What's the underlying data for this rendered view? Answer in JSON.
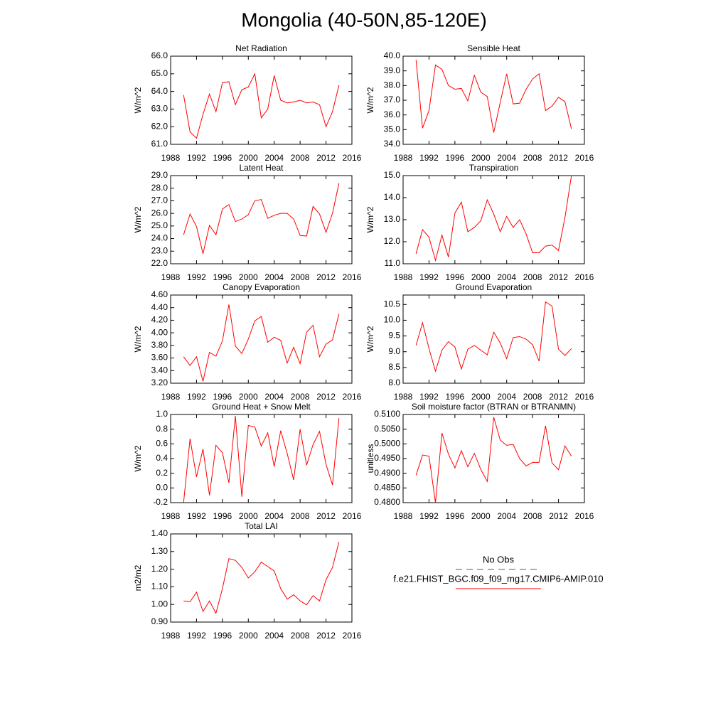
{
  "title": "Mongolia (40-50N,85-120E)",
  "legend": [
    {
      "name": "No Obs",
      "color": "#5050a0",
      "dashed": true
    },
    {
      "name": "f.e21.FHIST_BGC.f09_f09_mg17.CMIP6-AMIP.010",
      "color": "#ff0000",
      "dashed": false
    }
  ],
  "chart_data": [
    {
      "type": "line",
      "title": "Net Radiation",
      "y_label": "W/m^2",
      "color": "#ff0000",
      "x": [
        1990,
        1991,
        1992,
        1993,
        1994,
        1995,
        1996,
        1997,
        1998,
        1999,
        2000,
        2001,
        2002,
        2003,
        2004,
        2005,
        2006,
        2007,
        2008,
        2009,
        2010,
        2011,
        2012,
        2013,
        2014
      ],
      "values": [
        63.8,
        61.7,
        61.35,
        62.7,
        63.85,
        62.85,
        64.5,
        64.55,
        63.25,
        64.1,
        64.25,
        65.0,
        62.5,
        63.0,
        64.9,
        63.5,
        63.35,
        63.4,
        63.5,
        63.35,
        63.4,
        63.25,
        62.0,
        62.85,
        64.35
      ],
      "xlim": [
        1988,
        2016
      ],
      "xticks": [
        1988,
        1992,
        1996,
        2000,
        2004,
        2008,
        2012,
        2016
      ],
      "ylim": [
        61,
        66
      ],
      "yticks": [
        {
          "value": 61,
          "label": "61.0"
        },
        {
          "value": 62,
          "label": "62.0"
        },
        {
          "value": 63,
          "label": "63.0"
        },
        {
          "value": 64,
          "label": "64.0"
        },
        {
          "value": 65,
          "label": "65.0"
        },
        {
          "value": 66,
          "label": "66.0"
        }
      ]
    },
    {
      "type": "line",
      "title": "Sensible Heat",
      "y_label": "W/m^2",
      "color": "#ff0000",
      "x": [
        1990,
        1991,
        1992,
        1993,
        1994,
        1995,
        1996,
        1997,
        1998,
        1999,
        2000,
        2001,
        2002,
        2003,
        2004,
        2005,
        2006,
        2007,
        2008,
        2009,
        2010,
        2011,
        2012,
        2013,
        2014
      ],
      "values": [
        39.75,
        35.1,
        36.3,
        39.4,
        39.1,
        38.0,
        37.75,
        37.8,
        36.95,
        38.7,
        37.55,
        37.25,
        34.8,
        36.85,
        38.8,
        36.75,
        36.8,
        37.75,
        38.45,
        38.8,
        36.3,
        36.6,
        37.2,
        36.9,
        35.05
      ],
      "xlim": [
        1988,
        2016
      ],
      "xticks": [
        1988,
        1992,
        1996,
        2000,
        2004,
        2008,
        2012,
        2016
      ],
      "ylim": [
        34,
        40
      ],
      "yticks": [
        {
          "value": 34,
          "label": "34.0"
        },
        {
          "value": 35,
          "label": "35.0"
        },
        {
          "value": 36,
          "label": "36.0"
        },
        {
          "value": 37,
          "label": "37.0"
        },
        {
          "value": 38,
          "label": "38.0"
        },
        {
          "value": 39,
          "label": "39.0"
        },
        {
          "value": 40,
          "label": "40.0"
        }
      ]
    },
    {
      "type": "line",
      "title": "Latent Heat",
      "y_label": "W/m^2",
      "color": "#ff0000",
      "x": [
        1990,
        1991,
        1992,
        1993,
        1994,
        1995,
        1996,
        1997,
        1998,
        1999,
        2000,
        2001,
        2002,
        2003,
        2004,
        2005,
        2006,
        2007,
        2008,
        2009,
        2010,
        2011,
        2012,
        2013,
        2014
      ],
      "values": [
        24.3,
        25.95,
        24.95,
        22.8,
        25.05,
        24.3,
        26.35,
        26.7,
        25.35,
        25.55,
        25.9,
        27.0,
        27.1,
        25.6,
        25.85,
        26.0,
        26.0,
        25.55,
        24.25,
        24.2,
        26.55,
        25.95,
        24.5,
        26.0,
        28.4
      ],
      "xlim": [
        1988,
        2016
      ],
      "xticks": [
        1988,
        1992,
        1996,
        2000,
        2004,
        2008,
        2012,
        2016
      ],
      "ylim": [
        22,
        29
      ],
      "yticks": [
        {
          "value": 22,
          "label": "22.0"
        },
        {
          "value": 23,
          "label": "23.0"
        },
        {
          "value": 24,
          "label": "24.0"
        },
        {
          "value": 25,
          "label": "25.0"
        },
        {
          "value": 26,
          "label": "26.0"
        },
        {
          "value": 27,
          "label": "27.0"
        },
        {
          "value": 28,
          "label": "28.0"
        },
        {
          "value": 29,
          "label": "29.0"
        }
      ]
    },
    {
      "type": "line",
      "title": "Transpiration",
      "y_label": "W/m^2",
      "color": "#ff0000",
      "x": [
        1990,
        1991,
        1992,
        1993,
        1994,
        1995,
        1996,
        1997,
        1998,
        1999,
        2000,
        2001,
        2002,
        2003,
        2004,
        2005,
        2006,
        2007,
        2008,
        2009,
        2010,
        2011,
        2012,
        2013,
        2014
      ],
      "values": [
        11.45,
        12.55,
        12.2,
        11.15,
        12.3,
        11.3,
        13.3,
        13.8,
        12.45,
        12.65,
        12.95,
        13.9,
        13.25,
        12.45,
        13.15,
        12.65,
        13.0,
        12.35,
        11.5,
        11.5,
        11.8,
        11.85,
        11.6,
        13.1,
        15.0
      ],
      "xlim": [
        1988,
        2016
      ],
      "xticks": [
        1988,
        1992,
        1996,
        2000,
        2004,
        2008,
        2012,
        2016
      ],
      "ylim": [
        11,
        15
      ],
      "yticks": [
        {
          "value": 11,
          "label": "11.0"
        },
        {
          "value": 12,
          "label": "12.0"
        },
        {
          "value": 13,
          "label": "13.0"
        },
        {
          "value": 14,
          "label": "14.0"
        },
        {
          "value": 15,
          "label": "15.0"
        }
      ]
    },
    {
      "type": "line",
      "title": "Canopy Evaporation",
      "y_label": "W/m^2",
      "color": "#ff0000",
      "x": [
        1990,
        1991,
        1992,
        1993,
        1994,
        1995,
        1996,
        1997,
        1998,
        1999,
        2000,
        2001,
        2002,
        2003,
        2004,
        2005,
        2006,
        2007,
        2008,
        2009,
        2010,
        2011,
        2012,
        2013,
        2014
      ],
      "values": [
        3.62,
        3.48,
        3.62,
        3.23,
        3.69,
        3.63,
        3.87,
        4.45,
        3.79,
        3.67,
        3.9,
        4.19,
        4.26,
        3.85,
        3.93,
        3.88,
        3.52,
        3.77,
        3.51,
        4.01,
        4.12,
        3.62,
        3.82,
        3.89,
        4.3
      ],
      "xlim": [
        1988,
        2016
      ],
      "xticks": [
        1988,
        1992,
        1996,
        2000,
        2004,
        2008,
        2012,
        2016
      ],
      "ylim": [
        3.2,
        4.6
      ],
      "yticks": [
        {
          "value": 3.2,
          "label": "3.20"
        },
        {
          "value": 3.4,
          "label": "3.40"
        },
        {
          "value": 3.6,
          "label": "3.60"
        },
        {
          "value": 3.8,
          "label": "3.80"
        },
        {
          "value": 4.0,
          "label": "4.00"
        },
        {
          "value": 4.2,
          "label": "4.20"
        },
        {
          "value": 4.4,
          "label": "4.40"
        },
        {
          "value": 4.6,
          "label": "4.60"
        }
      ]
    },
    {
      "type": "line",
      "title": "Ground Evaporation",
      "y_label": "W/m^2",
      "color": "#ff0000",
      "x": [
        1990,
        1991,
        1992,
        1993,
        1994,
        1995,
        1996,
        1997,
        1998,
        1999,
        2000,
        2001,
        2002,
        2003,
        2004,
        2005,
        2006,
        2007,
        2008,
        2009,
        2010,
        2011,
        2012,
        2013,
        2014
      ],
      "values": [
        9.2,
        9.92,
        9.1,
        8.38,
        9.05,
        9.32,
        9.15,
        8.45,
        9.08,
        9.2,
        9.05,
        8.9,
        9.62,
        9.28,
        8.78,
        9.45,
        9.48,
        9.4,
        9.22,
        8.7,
        10.58,
        10.45,
        9.08,
        8.88,
        9.1
      ],
      "xlim": [
        1988,
        2016
      ],
      "xticks": [
        1988,
        1992,
        1996,
        2000,
        2004,
        2008,
        2012,
        2016
      ],
      "ylim": [
        8.0,
        10.8
      ],
      "yticks": [
        {
          "value": 8,
          "label": "8.0"
        },
        8.5,
        {
          "value": 9,
          "label": "9.0"
        },
        9.5,
        {
          "value": 10,
          "label": "10.0"
        },
        10.5
      ]
    },
    {
      "type": "line",
      "title": "Ground Heat + Snow Melt",
      "y_label": "W/m^2",
      "color": "#ff0000",
      "x": [
        1990,
        1991,
        1992,
        1993,
        1994,
        1995,
        1996,
        1997,
        1998,
        1999,
        2000,
        2001,
        2002,
        2003,
        2004,
        2005,
        2006,
        2007,
        2008,
        2009,
        2010,
        2011,
        2012,
        2013,
        2014
      ],
      "values": [
        -0.2,
        0.67,
        0.15,
        0.53,
        -0.1,
        0.58,
        0.48,
        0.07,
        0.98,
        -0.12,
        0.85,
        0.83,
        0.57,
        0.75,
        0.29,
        0.78,
        0.47,
        0.11,
        0.8,
        0.31,
        0.59,
        0.77,
        0.32,
        0.04,
        0.95
      ],
      "xlim": [
        1988,
        2016
      ],
      "xticks": [
        1988,
        1992,
        1996,
        2000,
        2004,
        2008,
        2012,
        2016
      ],
      "ylim": [
        -0.2,
        1.0
      ],
      "yticks": [
        -0.2,
        {
          "value": 0,
          "label": "0.0"
        },
        0.2,
        0.4,
        0.6,
        0.8,
        {
          "value": 1,
          "label": "1.0"
        }
      ]
    },
    {
      "type": "line",
      "title": "Soil moisture factor (BTRAN or BTRANMN)",
      "y_label": "unitless",
      "color": "#ff0000",
      "x": [
        1990,
        1991,
        1992,
        1993,
        1994,
        1995,
        1996,
        1997,
        1998,
        1999,
        2000,
        2001,
        2002,
        2003,
        2004,
        2005,
        2006,
        2007,
        2008,
        2009,
        2010,
        2011,
        2012,
        2013,
        2014
      ],
      "values": [
        0.4893,
        0.4962,
        0.4958,
        0.48,
        0.5037,
        0.4965,
        0.4918,
        0.4977,
        0.4922,
        0.4968,
        0.4913,
        0.4872,
        0.5091,
        0.5013,
        0.4995,
        0.4998,
        0.495,
        0.4925,
        0.4937,
        0.4937,
        0.5061,
        0.4935,
        0.4912,
        0.4993,
        0.4958
      ],
      "xlim": [
        1988,
        2016
      ],
      "xticks": [
        1988,
        1992,
        1996,
        2000,
        2004,
        2008,
        2012,
        2016
      ],
      "ylim": [
        0.48,
        0.51
      ],
      "yticks": [
        {
          "value": 0.48,
          "label": "0.4800"
        },
        {
          "value": 0.485,
          "label": "0.4850"
        },
        {
          "value": 0.49,
          "label": "0.4900"
        },
        {
          "value": 0.495,
          "label": "0.4950"
        },
        {
          "value": 0.5,
          "label": "0.5000"
        },
        {
          "value": 0.505,
          "label": "0.5050"
        },
        {
          "value": 0.51,
          "label": "0.5100"
        }
      ]
    },
    {
      "type": "line",
      "title": "Total LAI",
      "y_label": "m2/m2",
      "color": "#ff0000",
      "x": [
        1990,
        1991,
        1992,
        1993,
        1994,
        1995,
        1996,
        1997,
        1998,
        1999,
        2000,
        2001,
        2002,
        2003,
        2004,
        2005,
        2006,
        2007,
        2008,
        2009,
        2010,
        2011,
        2012,
        2013,
        2014
      ],
      "values": [
        1.02,
        1.015,
        1.07,
        0.96,
        1.02,
        0.95,
        1.09,
        1.26,
        1.25,
        1.21,
        1.15,
        1.185,
        1.24,
        1.215,
        1.19,
        1.09,
        1.03,
        1.055,
        1.02,
        0.998,
        1.05,
        1.02,
        1.14,
        1.21,
        1.355
      ],
      "xlim": [
        1988,
        2016
      ],
      "xticks": [
        1988,
        1992,
        1996,
        2000,
        2004,
        2008,
        2012,
        2016
      ],
      "ylim": [
        0.9,
        1.4
      ],
      "yticks": [
        {
          "value": 0.9,
          "label": "0.90"
        },
        {
          "value": 1.0,
          "label": "1.00"
        },
        {
          "value": 1.1,
          "label": "1.10"
        },
        {
          "value": 1.2,
          "label": "1.20"
        },
        {
          "value": 1.3,
          "label": "1.30"
        },
        {
          "value": 1.4,
          "label": "1.40"
        }
      ]
    }
  ]
}
